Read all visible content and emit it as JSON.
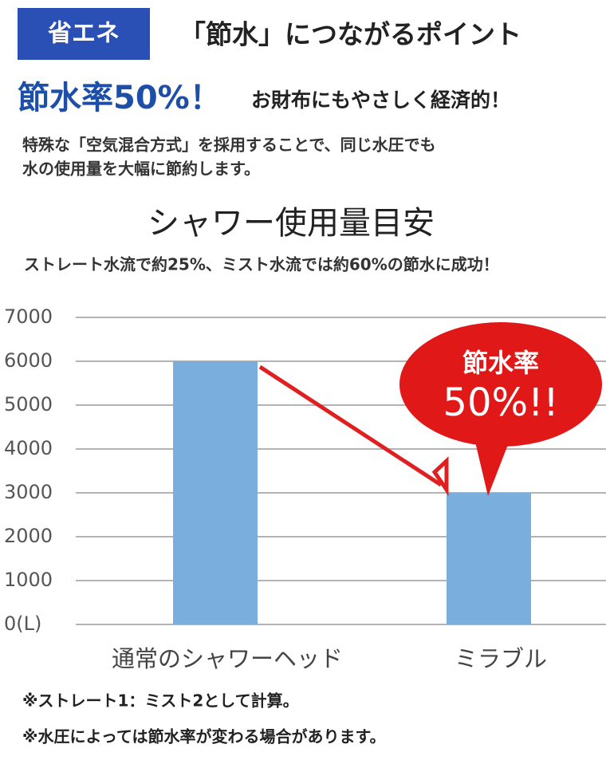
{
  "badge": "省エネ",
  "heading": "「節水」につながるポイント",
  "headline": [
    "節水率50%！",
    "お財布にもやさしく経済的！"
  ],
  "description": [
    "特殊な「空気混合方式」を採用することで、同じ水圧でも",
    "水の使用量を大幅に節約します。"
  ],
  "chart_data": {
    "type": "bar",
    "title": "シャワー使用量目安",
    "subtitle": "ストレート水流で約25%、ミスト水流では約60%の節水に成功！",
    "categories": [
      "通常のシャワーヘッド",
      "ミラブル"
    ],
    "values": [
      6000,
      3000
    ],
    "color": "#7aaedc",
    "ylim": [
      0,
      7000
    ],
    "yticks": [
      {
        "value": 0,
        "label": "0(L)"
      },
      1000,
      2000,
      3000,
      4000,
      5000,
      6000,
      7000
    ],
    "grid": true,
    "annotation": [
      "節水率",
      "50%!!"
    ]
  },
  "notes": [
    "※ストレート1：ミスト2として計算。",
    "※水圧によっては節水率が変わる場合があります。"
  ]
}
